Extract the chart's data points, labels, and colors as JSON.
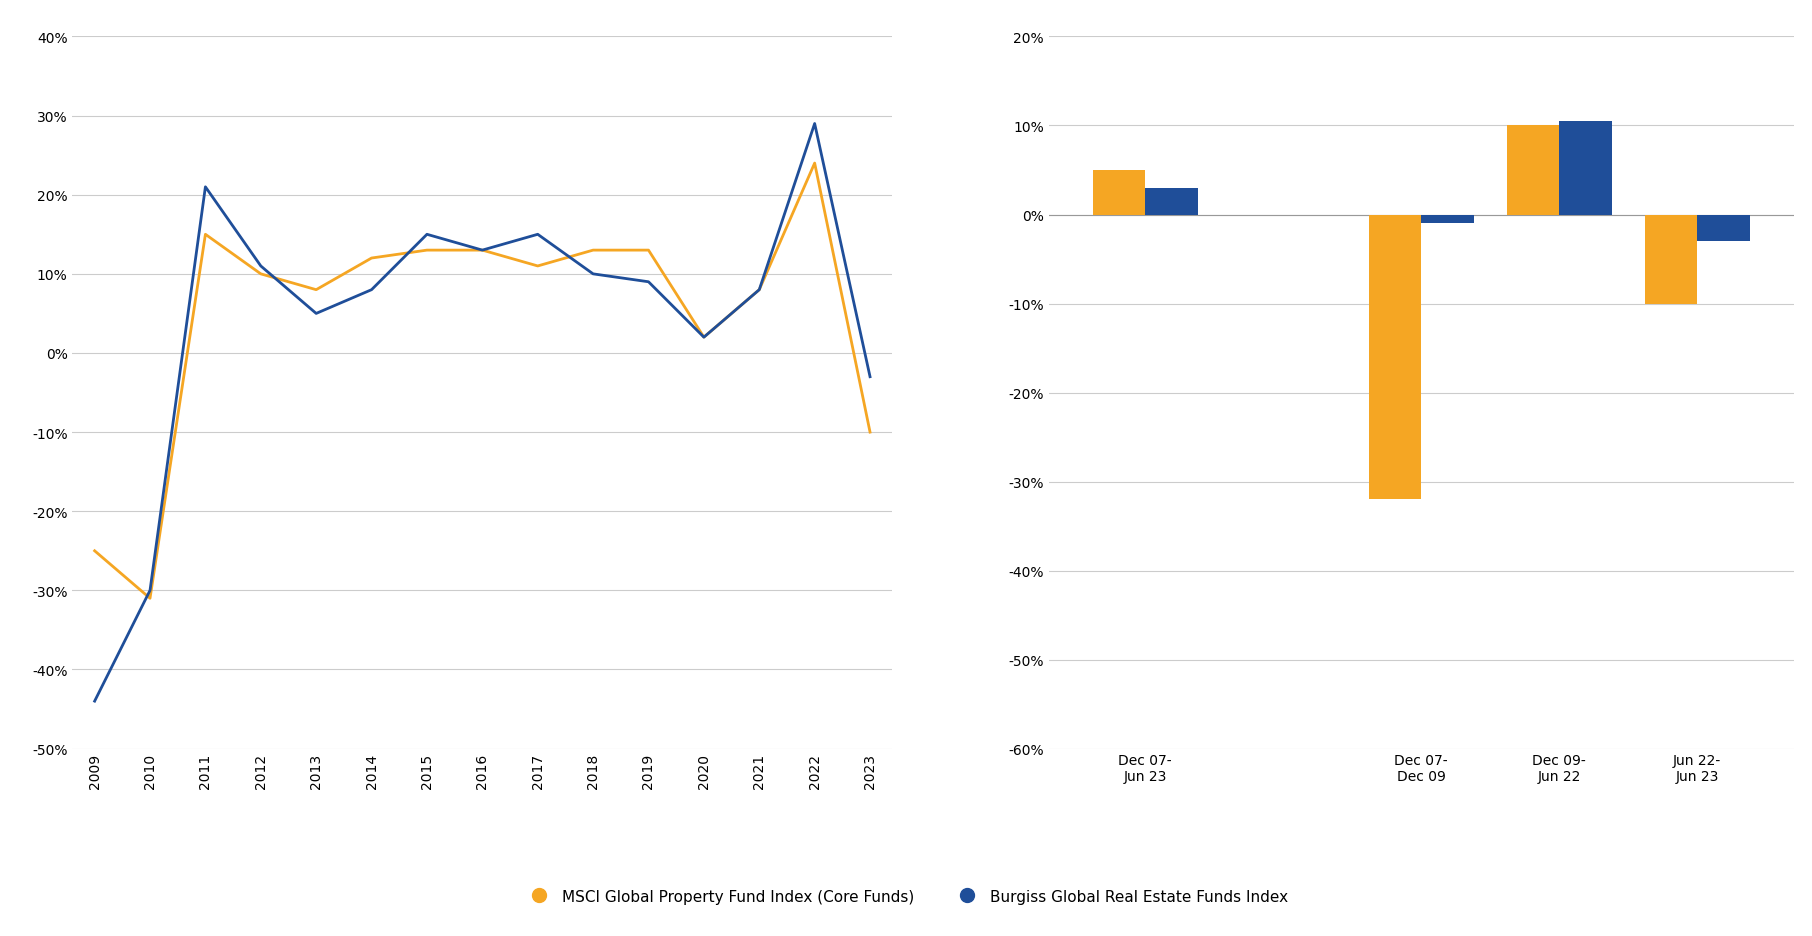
{
  "line_years": [
    2009,
    2010,
    2011,
    2012,
    2013,
    2014,
    2015,
    2016,
    2017,
    2018,
    2019,
    2020,
    2021,
    2022,
    2023
  ],
  "msci_values": [
    -25,
    -31,
    15,
    10,
    8,
    12,
    13,
    13,
    11,
    13,
    13,
    2,
    8,
    24,
    -10
  ],
  "burgiss_values": [
    -44,
    -30,
    21,
    11,
    5,
    8,
    15,
    13,
    15,
    10,
    9,
    2,
    8,
    29,
    -3
  ],
  "bar_categories": [
    "Dec 07-\nJun 23",
    "Dec 07-\nDec 09",
    "Dec 09-\nJun 22",
    "Jun 22-\nJun 23"
  ],
  "bar_positions": [
    0,
    2,
    3,
    4
  ],
  "msci_bar": [
    5,
    -32,
    10,
    -10
  ],
  "burgiss_bar": [
    3,
    -1,
    10.5,
    -3
  ],
  "line_ylim": [
    -50,
    40
  ],
  "bar_ylim": [
    -60,
    20
  ],
  "line_yticks": [
    -50,
    -40,
    -30,
    -20,
    -10,
    0,
    10,
    20,
    30,
    40
  ],
  "bar_yticks": [
    -60,
    -50,
    -40,
    -30,
    -20,
    -10,
    0,
    10,
    20
  ],
  "orange_color": "#F5A623",
  "blue_color": "#1F4E99",
  "legend_orange": "MSCI Global Property Fund Index (Core Funds)",
  "legend_blue": "Burgiss Global Real Estate Funds Index",
  "background_color": "#FFFFFF",
  "grid_color": "#CCCCCC"
}
